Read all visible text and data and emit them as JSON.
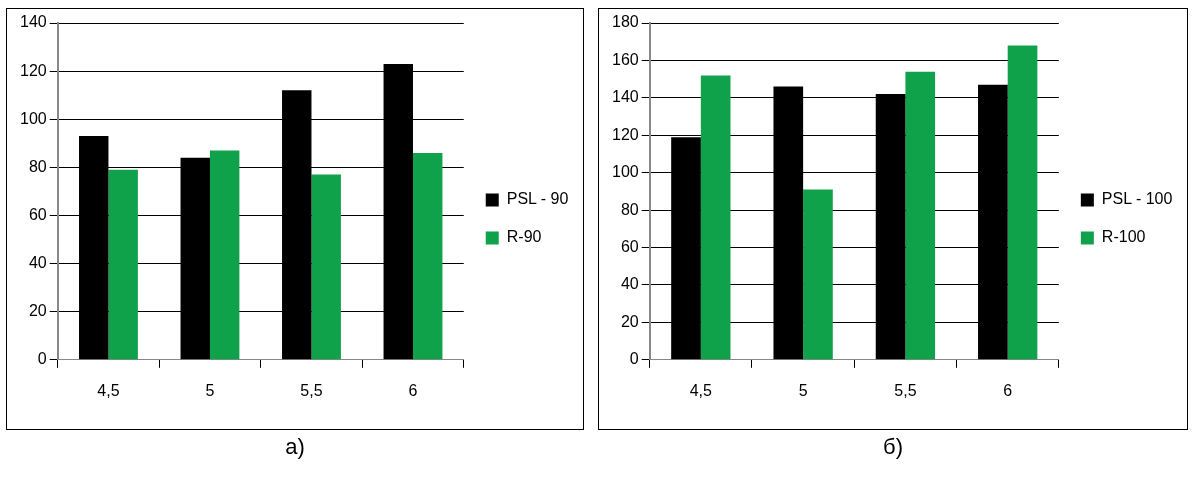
{
  "chart_data": [
    {
      "type": "bar",
      "categories": [
        "4,5",
        "5",
        "5,5",
        "6"
      ],
      "series": [
        {
          "name": "PSL - 90",
          "color": "#000000",
          "values": [
            93,
            84,
            112,
            123
          ]
        },
        {
          "name": "R-90",
          "color": "#10a24a",
          "values": [
            79,
            87,
            77,
            86
          ]
        }
      ],
      "ylim": [
        0,
        140
      ],
      "yticks": [
        0,
        20,
        40,
        60,
        80,
        100,
        120,
        140
      ],
      "grid": "y",
      "legend": "right",
      "annotations": [
        "а)"
      ]
    },
    {
      "type": "bar",
      "categories": [
        "4,5",
        "5",
        "5,5",
        "6"
      ],
      "series": [
        {
          "name": "PSL - 100",
          "color": "#000000",
          "values": [
            119,
            146,
            142,
            147
          ]
        },
        {
          "name": "R-100",
          "color": "#10a24a",
          "values": [
            152,
            91,
            154,
            168
          ]
        }
      ],
      "ylim": [
        0,
        180
      ],
      "yticks": [
        0,
        20,
        40,
        60,
        80,
        100,
        120,
        140,
        160,
        180
      ],
      "grid": "y",
      "legend": "right",
      "annotations": [
        "б)"
      ]
    }
  ]
}
